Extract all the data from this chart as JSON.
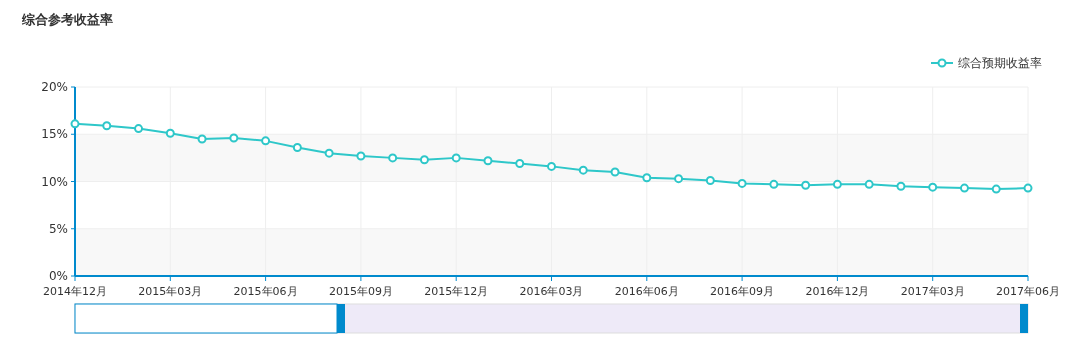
{
  "chart_data": {
    "type": "line",
    "title": "综合参考收益率",
    "categories": [
      "2014年12月",
      null,
      null,
      "2015年03月",
      null,
      null,
      "2015年06月",
      null,
      null,
      "2015年09月",
      null,
      null,
      "2015年12月",
      null,
      null,
      "2016年03月",
      null,
      null,
      "2016年06月",
      null,
      null,
      "2016年09月",
      null,
      null,
      "2016年12月",
      null,
      null,
      "2017年03月",
      null,
      null,
      "2017年06月"
    ],
    "series": [
      {
        "name": "综合预期收益率",
        "color": "#2ec7c9",
        "values": [
          16.1,
          15.9,
          15.6,
          15.1,
          14.5,
          14.6,
          14.3,
          13.6,
          13.0,
          12.7,
          12.5,
          12.3,
          12.5,
          12.2,
          11.9,
          11.6,
          11.2,
          11.0,
          10.4,
          10.3,
          10.1,
          9.8,
          9.7,
          9.6,
          9.7,
          9.7,
          9.5,
          9.4,
          9.3,
          9.2,
          9.3
        ]
      }
    ],
    "ylim": [
      0,
      20
    ],
    "yticks": [
      {
        "value": 0,
        "label": "0%"
      },
      {
        "value": 5,
        "label": "5%"
      },
      {
        "value": 10,
        "label": "10%"
      },
      {
        "value": 15,
        "label": "15%"
      },
      {
        "value": 20,
        "label": "20%"
      }
    ],
    "grid": true,
    "legend": "top right",
    "marker": "circle",
    "line_style": "solid"
  }
}
